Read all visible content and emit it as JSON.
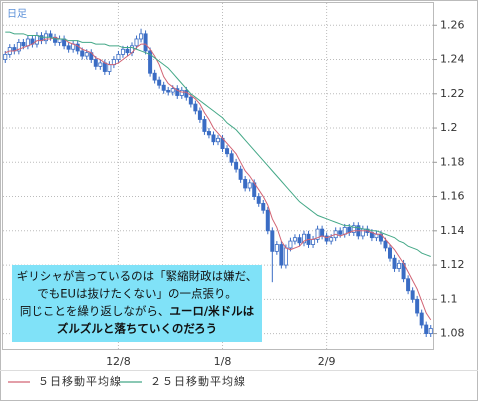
{
  "chart_data": {
    "type": "candlestick",
    "label": "日足",
    "categories": [
      null,
      null,
      null,
      null,
      null,
      null,
      null,
      null,
      null,
      null,
      null,
      null,
      null,
      null,
      null,
      null,
      null,
      null,
      null,
      null,
      null,
      null,
      null,
      null,
      null,
      "12/8",
      null,
      null,
      null,
      null,
      null,
      null,
      null,
      null,
      null,
      null,
      null,
      null,
      null,
      null,
      null,
      null,
      null,
      null,
      null,
      null,
      null,
      null,
      "1/8",
      null,
      null,
      null,
      null,
      null,
      null,
      null,
      null,
      null,
      null,
      null,
      null,
      null,
      null,
      null,
      null,
      null,
      null,
      null,
      null,
      null,
      null,
      "2/9",
      null,
      null,
      null,
      null,
      null,
      null,
      null,
      null,
      null,
      null,
      null,
      null,
      null,
      null,
      null,
      null,
      null,
      null,
      null,
      null,
      null,
      null,
      null
    ],
    "ohlc": [
      [
        1.24,
        1.245,
        1.238,
        1.243
      ],
      [
        1.243,
        1.249,
        1.241,
        1.247
      ],
      [
        1.247,
        1.249,
        1.243,
        1.245
      ],
      [
        1.245,
        1.252,
        1.243,
        1.25
      ],
      [
        1.25,
        1.252,
        1.246,
        1.248
      ],
      [
        1.248,
        1.254,
        1.246,
        1.252
      ],
      [
        1.252,
        1.254,
        1.247,
        1.249
      ],
      [
        1.249,
        1.256,
        1.247,
        1.254
      ],
      [
        1.254,
        1.256,
        1.249,
        1.251
      ],
      [
        1.251,
        1.257,
        1.249,
        1.255
      ],
      [
        1.255,
        1.257,
        1.251,
        1.253
      ],
      [
        1.253,
        1.255,
        1.248,
        1.25
      ],
      [
        1.25,
        1.254,
        1.248,
        1.252
      ],
      [
        1.252,
        1.254,
        1.246,
        1.248
      ],
      [
        1.248,
        1.25,
        1.244,
        1.246
      ],
      [
        1.246,
        1.251,
        1.244,
        1.249
      ],
      [
        1.249,
        1.251,
        1.243,
        1.245
      ],
      [
        1.245,
        1.247,
        1.24,
        1.242
      ],
      [
        1.242,
        1.246,
        1.24,
        1.244
      ],
      [
        1.244,
        1.246,
        1.238,
        1.24
      ],
      [
        1.24,
        1.242,
        1.234,
        1.236
      ],
      [
        1.236,
        1.24,
        1.234,
        1.238
      ],
      [
        1.238,
        1.24,
        1.231,
        1.233
      ],
      [
        1.233,
        1.239,
        1.231,
        1.237
      ],
      [
        1.237,
        1.242,
        1.235,
        1.24
      ],
      [
        1.24,
        1.245,
        1.238,
        1.243
      ],
      [
        1.243,
        1.248,
        1.241,
        1.246
      ],
      [
        1.246,
        1.248,
        1.242,
        1.244
      ],
      [
        1.244,
        1.25,
        1.242,
        1.248
      ],
      [
        1.248,
        1.254,
        1.246,
        1.252
      ],
      [
        1.252,
        1.258,
        1.25,
        1.255
      ],
      [
        1.255,
        1.257,
        1.243,
        1.245
      ],
      [
        1.245,
        1.247,
        1.23,
        1.232
      ],
      [
        1.232,
        1.234,
        1.226,
        1.228
      ],
      [
        1.228,
        1.23,
        1.223,
        1.225
      ],
      [
        1.225,
        1.227,
        1.22,
        1.222
      ],
      [
        1.222,
        1.224,
        1.219,
        1.221
      ],
      [
        1.221,
        1.225,
        1.219,
        1.223
      ],
      [
        1.223,
        1.225,
        1.217,
        1.219
      ],
      [
        1.219,
        1.224,
        1.217,
        1.222
      ],
      [
        1.222,
        1.224,
        1.216,
        1.218
      ],
      [
        1.218,
        1.22,
        1.212,
        1.214
      ],
      [
        1.214,
        1.216,
        1.208,
        1.21
      ],
      [
        1.21,
        1.212,
        1.203,
        1.205
      ],
      [
        1.205,
        1.207,
        1.196,
        1.198
      ],
      [
        1.198,
        1.2,
        1.194,
        1.196
      ],
      [
        1.196,
        1.198,
        1.19,
        1.192
      ],
      [
        1.192,
        1.196,
        1.19,
        1.194
      ],
      [
        1.194,
        1.196,
        1.186,
        1.188
      ],
      [
        1.188,
        1.19,
        1.183,
        1.185
      ],
      [
        1.185,
        1.187,
        1.178,
        1.18
      ],
      [
        1.18,
        1.182,
        1.174,
        1.176
      ],
      [
        1.176,
        1.178,
        1.168,
        1.17
      ],
      [
        1.17,
        1.172,
        1.163,
        1.165
      ],
      [
        1.165,
        1.17,
        1.163,
        1.168
      ],
      [
        1.168,
        1.17,
        1.158,
        1.16
      ],
      [
        1.16,
        1.162,
        1.154,
        1.156
      ],
      [
        1.156,
        1.158,
        1.15,
        1.152
      ],
      [
        1.152,
        1.154,
        1.138,
        1.14
      ],
      [
        1.14,
        1.142,
        1.11,
        1.128
      ],
      [
        1.128,
        1.134,
        1.126,
        1.132
      ],
      [
        1.132,
        1.134,
        1.118,
        1.12
      ],
      [
        1.12,
        1.132,
        1.118,
        1.13
      ],
      [
        1.13,
        1.136,
        1.128,
        1.134
      ],
      [
        1.134,
        1.138,
        1.132,
        1.136
      ],
      [
        1.136,
        1.138,
        1.131,
        1.133
      ],
      [
        1.133,
        1.14,
        1.131,
        1.138
      ],
      [
        1.138,
        1.14,
        1.13,
        1.132
      ],
      [
        1.132,
        1.137,
        1.13,
        1.135
      ],
      [
        1.135,
        1.143,
        1.133,
        1.141
      ],
      [
        1.141,
        1.143,
        1.135,
        1.137
      ],
      [
        1.137,
        1.139,
        1.132,
        1.134
      ],
      [
        1.134,
        1.138,
        1.132,
        1.136
      ],
      [
        1.136,
        1.142,
        1.134,
        1.14
      ],
      [
        1.14,
        1.142,
        1.136,
        1.138
      ],
      [
        1.138,
        1.144,
        1.136,
        1.142
      ],
      [
        1.142,
        1.144,
        1.137,
        1.139
      ],
      [
        1.139,
        1.145,
        1.137,
        1.143
      ],
      [
        1.143,
        1.145,
        1.135,
        1.137
      ],
      [
        1.137,
        1.143,
        1.135,
        1.141
      ],
      [
        1.141,
        1.143,
        1.137,
        1.139
      ],
      [
        1.139,
        1.141,
        1.134,
        1.136
      ],
      [
        1.136,
        1.14,
        1.134,
        1.138
      ],
      [
        1.138,
        1.14,
        1.132,
        1.134
      ],
      [
        1.134,
        1.136,
        1.128,
        1.13
      ],
      [
        1.13,
        1.132,
        1.122,
        1.124
      ],
      [
        1.124,
        1.126,
        1.116,
        1.118
      ],
      [
        1.118,
        1.123,
        1.116,
        1.121
      ],
      [
        1.121,
        1.123,
        1.11,
        1.112
      ],
      [
        1.112,
        1.114,
        1.103,
        1.105
      ],
      [
        1.105,
        1.107,
        1.098,
        1.1
      ],
      [
        1.1,
        1.102,
        1.09,
        1.092
      ],
      [
        1.092,
        1.094,
        1.083,
        1.085
      ],
      [
        1.085,
        1.087,
        1.078,
        1.08
      ],
      [
        1.08,
        1.085,
        1.078,
        1.083
      ]
    ],
    "up_color": "#ffffff",
    "down_color": "#3a6cc4",
    "edge_color": "#3a6cc4",
    "series": [
      {
        "name": "５日移動平均線",
        "color": "#d26474",
        "values": [
          1.244,
          1.245,
          1.245,
          1.246,
          1.247,
          1.248,
          1.249,
          1.251,
          1.251,
          1.252,
          1.252,
          1.253,
          1.252,
          1.252,
          1.25,
          1.249,
          1.248,
          1.246,
          1.245,
          1.244,
          1.241,
          1.24,
          1.238,
          1.237,
          1.237,
          1.238,
          1.24,
          1.242,
          1.244,
          1.247,
          1.249,
          1.249,
          1.246,
          1.242,
          1.237,
          1.23,
          1.226,
          1.224,
          1.222,
          1.221,
          1.221,
          1.219,
          1.217,
          1.214,
          1.209,
          1.205,
          1.2,
          1.197,
          1.194,
          1.191,
          1.188,
          1.185,
          1.18,
          1.175,
          1.172,
          1.168,
          1.164,
          1.16,
          1.155,
          1.147,
          1.142,
          1.134,
          1.13,
          1.129,
          1.13,
          1.131,
          1.134,
          1.135,
          1.135,
          1.136,
          1.137,
          1.136,
          1.137,
          1.138,
          1.137,
          1.138,
          1.139,
          1.14,
          1.14,
          1.14,
          1.14,
          1.139,
          1.138,
          1.138,
          1.135,
          1.132,
          1.129,
          1.125,
          1.121,
          1.116,
          1.111,
          1.106,
          1.099,
          1.092,
          1.088
        ]
      },
      {
        "name": "２５日移動平均線",
        "color": "#44a887",
        "values": [
          1.256,
          1.256,
          1.255,
          1.255,
          1.255,
          1.254,
          1.254,
          1.254,
          1.253,
          1.253,
          1.253,
          1.252,
          1.252,
          1.252,
          1.251,
          1.251,
          1.251,
          1.25,
          1.25,
          1.25,
          1.249,
          1.249,
          1.249,
          1.248,
          1.248,
          1.248,
          1.247,
          1.247,
          1.247,
          1.246,
          1.245,
          1.244,
          1.243,
          1.241,
          1.239,
          1.237,
          1.235,
          1.232,
          1.229,
          1.226,
          1.223,
          1.22,
          1.218,
          1.216,
          1.214,
          1.212,
          1.21,
          1.208,
          1.206,
          1.203,
          1.201,
          1.199,
          1.196,
          1.193,
          1.19,
          1.187,
          1.184,
          1.181,
          1.178,
          1.175,
          1.172,
          1.169,
          1.166,
          1.163,
          1.16,
          1.157,
          1.155,
          1.153,
          1.151,
          1.149,
          1.148,
          1.147,
          1.146,
          1.145,
          1.144,
          1.143,
          1.143,
          1.142,
          1.142,
          1.141,
          1.141,
          1.14,
          1.14,
          1.139,
          1.138,
          1.137,
          1.136,
          1.134,
          1.133,
          1.131,
          1.13,
          1.129,
          1.127,
          1.126,
          1.125
        ]
      }
    ],
    "ylim": [
      1.071,
      1.273
    ],
    "yticks": [
      1.26,
      1.24,
      1.22,
      1.2,
      1.18,
      1.16,
      1.14,
      1.12,
      1.1,
      1.08
    ],
    "grid": true,
    "legend": "bottom-left",
    "annotation": [
      [
        "ギリシャが言っているのは「緊縮財政は嫌だ、"
      ],
      [
        "でもEUは抜けたくない」の一点張り。"
      ],
      [
        "同じことを繰り返しながら、",
        "ユーロ/米ドルは"
      ],
      [
        "ズルズルと落ちていくのだろう"
      ]
    ],
    "annotation_color": "#80e2f8"
  }
}
